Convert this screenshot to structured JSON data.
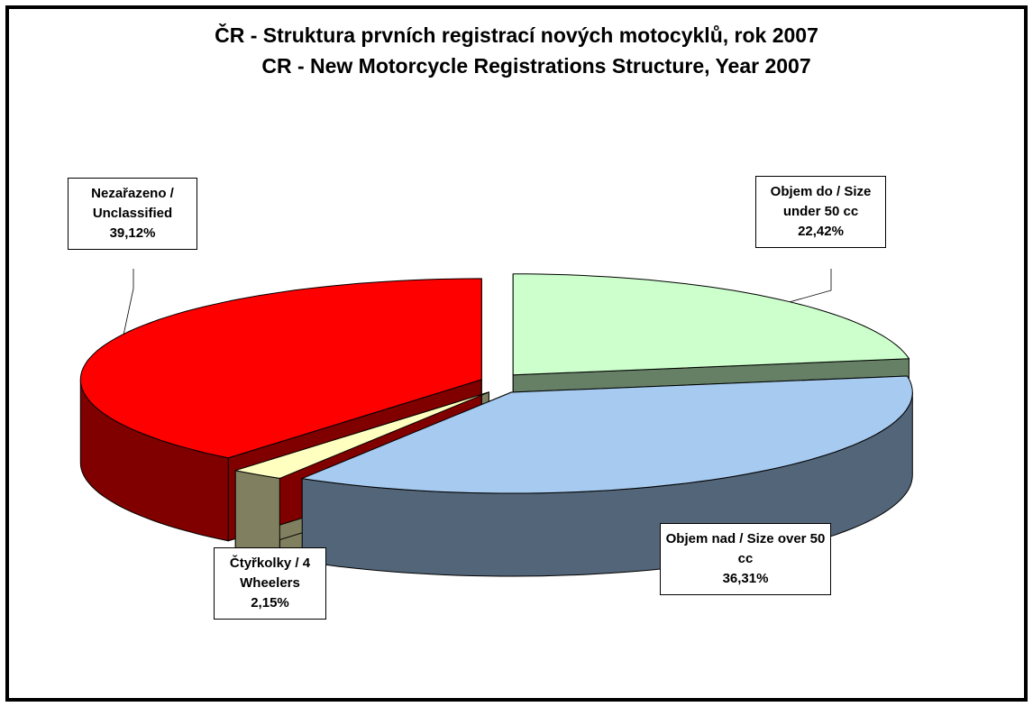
{
  "chart_data": {
    "type": "pie",
    "title": "ČR - Struktura prvních registrací nových motocyklů, rok 2007",
    "subtitle": "CR - New Motorcycle Registrations Structure, Year 2007",
    "categories": [
      "Objem do / Size under 50 cc",
      "Objem nad / Size over 50 cc",
      "Čtyřkolky / 4 Wheelers",
      "Nezařazeno / Unclassified"
    ],
    "values": [
      22.42,
      36.31,
      2.15,
      39.12
    ],
    "value_labels": [
      "22,42%",
      "36,31%",
      "2,15%",
      "39,12%"
    ],
    "colors": [
      "#ccffcc",
      "#a6caf0",
      "#ffffc0",
      "#ff0000"
    ]
  }
}
